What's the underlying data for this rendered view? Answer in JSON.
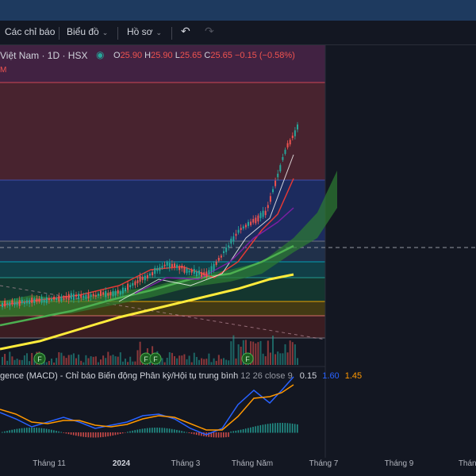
{
  "toolbar": {
    "indicators_label": "Các chỉ báo",
    "chart_type_label": "Biểu đồ",
    "templates_label": "Hồ sơ"
  },
  "legend": {
    "symbol": "Việt Nam · 1D · HSX",
    "o_key": "O",
    "o": "25.90",
    "h_key": "H",
    "h": "25.90",
    "l_key": "L",
    "l": "25.65",
    "c_key": "C",
    "c": "25.65",
    "change": "−0.15 (−0.58%)",
    "sub_label": "M"
  },
  "macd": {
    "title": "gence (MACD) - Chỉ báo Biến động Phân kỳ/Hội tụ trung bình",
    "params": "12 26 close 9",
    "hist_value": "0.15",
    "macd_value": "1.60",
    "signal_value": "1.45"
  },
  "xaxis": {
    "labels": [
      "Tháng 11",
      "2024",
      "Tháng 3",
      "Tháng Năm",
      "Tháng 7",
      "Tháng 9",
      "Tháng"
    ]
  },
  "colors": {
    "background": "#131722",
    "up": "#26a69a",
    "down": "#ef5350",
    "ma_long": "#ffeb3b",
    "ma_mid": "#4caf50",
    "macd_line": "#2962ff",
    "signal_line": "#ff9800"
  },
  "icons": [
    "undo-icon",
    "redo-icon",
    "eye-icon",
    "chevron-down-icon",
    "event-flag-icon"
  ],
  "chart_data": {
    "type": "candlestick",
    "title": "",
    "last_close": 25.65,
    "event_markers": [
      "F",
      "F",
      "F",
      "F"
    ],
    "x_labels": [
      "Tháng 11",
      "2024",
      "Tháng 3",
      "Tháng Năm",
      "Tháng 7",
      "Tháng 9",
      "Tháng"
    ]
  }
}
